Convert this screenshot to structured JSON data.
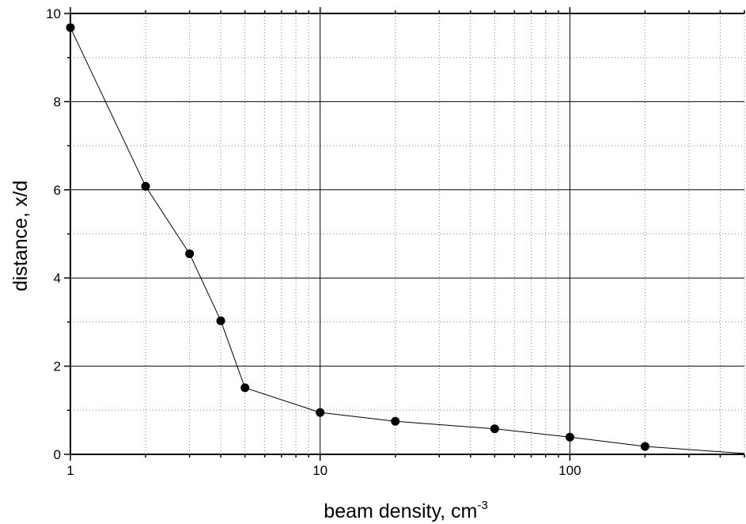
{
  "chart_data": {
    "type": "line",
    "x_scale": "log",
    "xlim": [
      1,
      500
    ],
    "ylim": [
      0,
      10
    ],
    "grid": true,
    "xlabel": "beam density, cm",
    "xlabel_superscript": "-3",
    "ylabel": "distance, x/d",
    "x_tick_labels": [
      "1",
      "10",
      "100"
    ],
    "y_tick_labels": [
      "0",
      "2",
      "4",
      "6",
      "8",
      "10"
    ],
    "series": [
      {
        "marker": "circle",
        "points": [
          {
            "x": 1,
            "y": 9.68
          },
          {
            "x": 2,
            "y": 6.08
          },
          {
            "x": 3,
            "y": 4.55
          },
          {
            "x": 4,
            "y": 3.03
          },
          {
            "x": 5,
            "y": 1.51
          },
          {
            "x": 10,
            "y": 0.95
          },
          {
            "x": 20,
            "y": 0.75
          },
          {
            "x": 50,
            "y": 0.58
          },
          {
            "x": 100,
            "y": 0.39
          },
          {
            "x": 200,
            "y": 0.18
          }
        ],
        "line_end": {
          "x": 500,
          "y": 0.02
        }
      }
    ],
    "colors": {
      "line": "#000000",
      "marker": "#000000",
      "major_grid": "#000000",
      "minor_grid": "#808080"
    }
  }
}
